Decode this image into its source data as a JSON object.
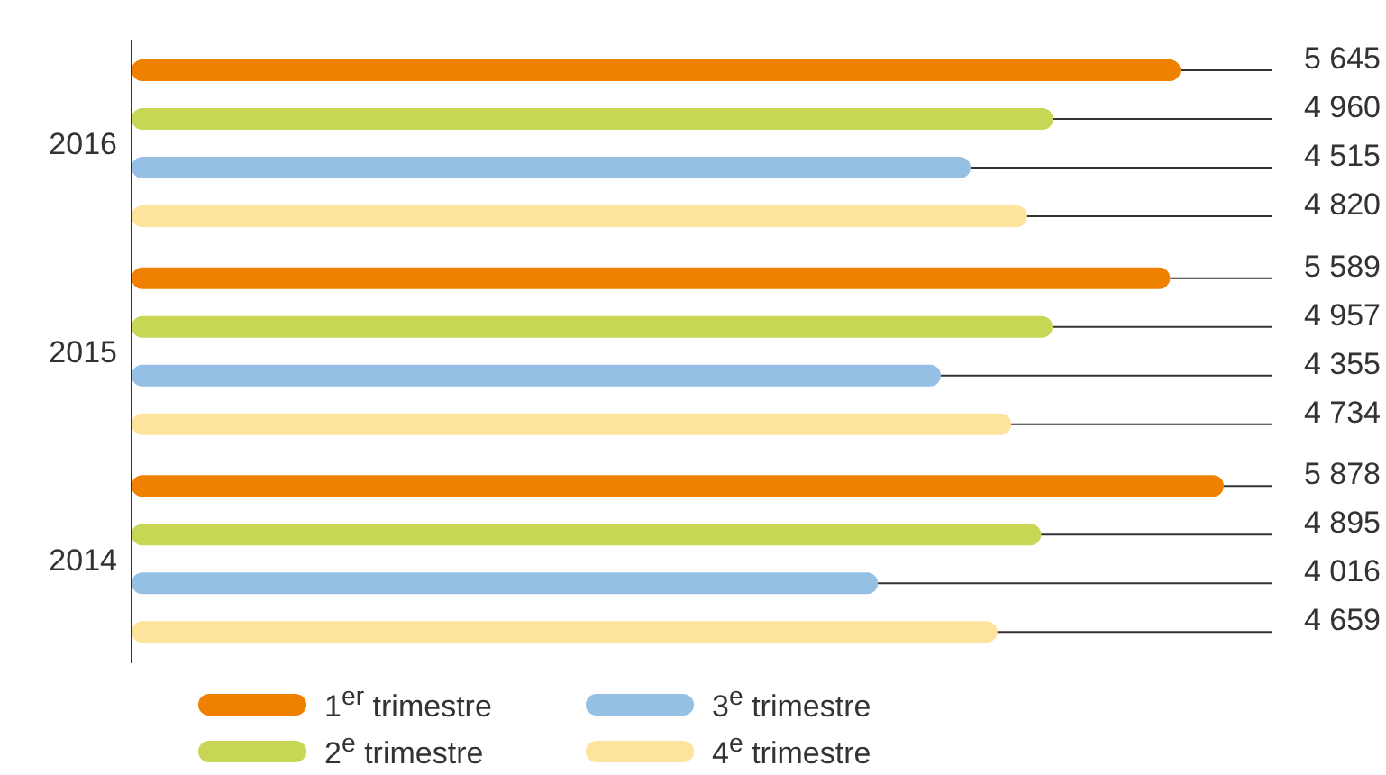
{
  "chart_data": {
    "type": "bar",
    "orientation": "horizontal",
    "categories": [
      "2016",
      "2015",
      "2014"
    ],
    "series": [
      {
        "name": "1$^{er}$ trimestre",
        "color": "#f08100",
        "values": [
          5645,
          5589,
          5878
        ],
        "value_labels": [
          "5 645",
          "5 589",
          "5 878"
        ]
      },
      {
        "name": "2$^{e}$ trimestre",
        "color": "#c8d655",
        "values": [
          4960,
          4957,
          4895
        ],
        "value_labels": [
          "4 960",
          "4 957",
          "4 895"
        ]
      },
      {
        "name": "3$^{e}$ trimestre",
        "color": "#95c0e3",
        "values": [
          4515,
          4355,
          4016
        ],
        "value_labels": [
          "4 515",
          "4 355",
          "4 016"
        ]
      },
      {
        "name": "4$^{e}$ trimestre",
        "color": "#fde39b",
        "values": [
          4820,
          4734,
          4659
        ],
        "value_labels": [
          "4 820",
          "4 734",
          "4 659"
        ]
      }
    ],
    "legend": "bottom",
    "grid": false
  }
}
